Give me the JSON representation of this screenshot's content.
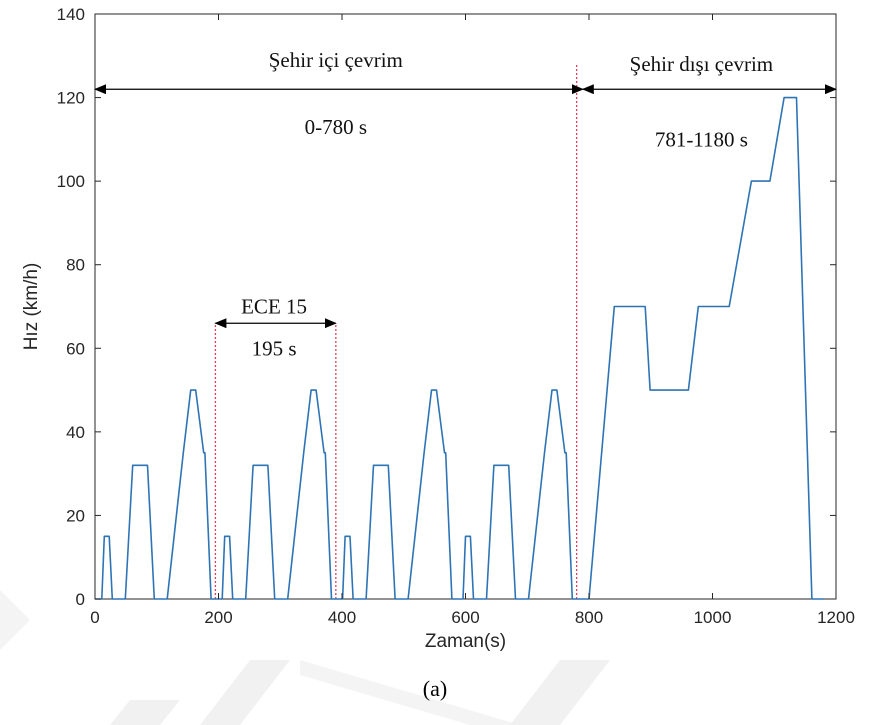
{
  "caption": "(a)",
  "chart_data": {
    "type": "line",
    "xlabel": "Zaman(s)",
    "ylabel": "Hız (km/h)",
    "xlim": [
      0,
      1200
    ],
    "ylim": [
      0,
      140
    ],
    "xticks": [
      0,
      200,
      400,
      600,
      800,
      1000,
      1200
    ],
    "yticks": [
      0,
      20,
      40,
      60,
      80,
      100,
      120,
      140
    ],
    "grid": false,
    "colors": {
      "line": "#2e74b5",
      "vline": "#e0405a",
      "arrow": "#000000",
      "axis": "#262626"
    },
    "series": [
      {
        "x": [
          0,
          11,
          15,
          23,
          28,
          49,
          61,
          85,
          96,
          117,
          143,
          155,
          163,
          176,
          178,
          188,
          195
        ],
        "y": [
          0,
          0,
          15,
          15,
          0,
          0,
          32,
          32,
          0,
          0,
          35,
          50,
          50,
          35,
          35,
          0,
          0
        ],
        "repeat_count": 4,
        "repeat_period": 195
      },
      {
        "x": [
          780,
          800,
          841,
          891,
          899,
          961,
          977,
          1027,
          1063,
          1093,
          1116,
          1126,
          1136,
          1161,
          1180
        ],
        "y": [
          0,
          0,
          70,
          70,
          50,
          50,
          70,
          70,
          100,
          100,
          120,
          120,
          120,
          0,
          0
        ]
      }
    ],
    "vlines": [
      195,
      390,
      780
    ],
    "annotations": [
      {
        "text": "Şehir içi çevrim",
        "x": 390,
        "y": 129
      },
      {
        "text": "0-780 s",
        "x": 390,
        "y": 113
      },
      {
        "text": "Şehir dışı çevrim",
        "x": 982,
        "y": 128
      },
      {
        "text": "781-1180 s",
        "x": 982,
        "y": 110
      },
      {
        "text": "ECE 15",
        "x": 290,
        "y": 70
      },
      {
        "text": "195 s",
        "x": 290,
        "y": 60
      }
    ],
    "arrows": [
      {
        "from": [
          0,
          122
        ],
        "to": [
          790,
          122
        ]
      },
      {
        "from": [
          790,
          122
        ],
        "to": [
          1200,
          122
        ]
      },
      {
        "from": [
          195,
          66
        ],
        "to": [
          390,
          66
        ]
      }
    ]
  }
}
